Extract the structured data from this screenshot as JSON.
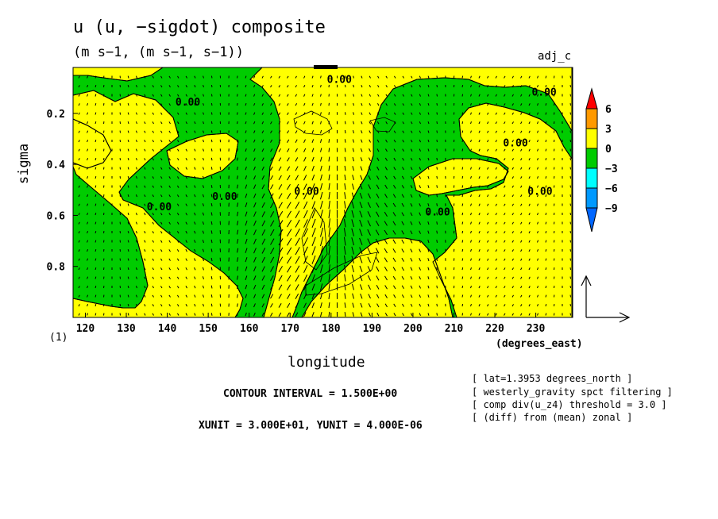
{
  "title": "u (u, −sigdot) composite",
  "subtitle": "(m s−1, (m s−1, s−1))",
  "experiment": "adj_c",
  "extra_axis_label": "(1)",
  "contour_interval_text": "CONTOUR INTERVAL = 1.500E+00",
  "unit_text": "XUNIT = 3.000E+01, YUNIT = 4.000E-06",
  "notes": [
    "[ lat=1.3953 degrees_north ]",
    "[ westerly_gravity spct filtering ]",
    "[ comp div(u_z4) threshold = 3.0 ]",
    "[ (diff) from (mean) zonal ]"
  ],
  "colors": {
    "positive": "#ffff00",
    "negative": "#00cc00",
    "c_red": "#ff0000",
    "c_orange": "#ff9900",
    "c_cyan": "#00ffff",
    "c_blue": "#0099ff",
    "c_darkblue": "#0066ff"
  },
  "chart_data": {
    "type": "heatmap",
    "xlabel": "longitude",
    "xunits": "(degrees_east)",
    "ylabel": "sigma",
    "xlim": [
      117,
      239
    ],
    "ylim": [
      1.0,
      0.02
    ],
    "x_ticks": [
      "120",
      "130",
      "140",
      "150",
      "160",
      "170",
      "180",
      "190",
      "200",
      "210",
      "220",
      "230"
    ],
    "y_ticks": [
      "0.2",
      "0.4",
      "0.6",
      "0.8"
    ],
    "y_tick_values": [
      0.2,
      0.4,
      0.6,
      0.8
    ],
    "x_tick_values": [
      120,
      130,
      140,
      150,
      160,
      170,
      180,
      190,
      200,
      210,
      220,
      230
    ],
    "contour_labels": [
      {
        "text": "0.00",
        "x": 179,
        "y": 0.08
      },
      {
        "text": "0.00",
        "x": 142,
        "y": 0.17
      },
      {
        "text": "0.00",
        "x": 229,
        "y": 0.13
      },
      {
        "text": "0.00",
        "x": 222,
        "y": 0.33
      },
      {
        "text": "0.00",
        "x": 135,
        "y": 0.58
      },
      {
        "text": "0.00",
        "x": 151,
        "y": 0.54
      },
      {
        "text": "0.00",
        "x": 171,
        "y": 0.52
      },
      {
        "text": "0.00",
        "x": 203,
        "y": 0.6
      },
      {
        "text": "0.00",
        "x": 228,
        "y": 0.52
      }
    ],
    "colorbar": {
      "levels": [
        "6",
        "3",
        "0",
        "−3",
        "−6",
        "−9"
      ]
    },
    "vector_reference": {
      "xunit": 30.0,
      "yunit": 4e-06
    },
    "grid": false,
    "legend": "right"
  }
}
